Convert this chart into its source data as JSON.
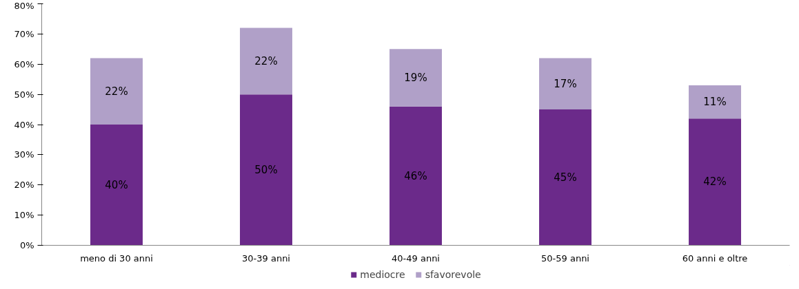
{
  "chart_data": {
    "type": "bar",
    "stacked": true,
    "categories": [
      "meno di 30 anni",
      "30-39 anni",
      "40-49 anni",
      "50-59 anni",
      "60 anni e oltre"
    ],
    "series": [
      {
        "name": "mediocre",
        "color": "#6b2a8a",
        "values": [
          40,
          50,
          46,
          45,
          42
        ],
        "value_labels": [
          "40%",
          "50%",
          "46%",
          "45%",
          "42%"
        ]
      },
      {
        "name": "sfavorevole",
        "color": "#b0a0c8",
        "values": [
          22,
          22,
          19,
          17,
          11
        ],
        "value_labels": [
          "22%",
          "22%",
          "19%",
          "17%",
          "11%"
        ]
      }
    ],
    "ylim": [
      0,
      80
    ],
    "yticks": [
      {
        "value": 0,
        "label": "0%"
      },
      {
        "value": 10,
        "label": "10%"
      },
      {
        "value": 20,
        "label": "20%"
      },
      {
        "value": 30,
        "label": "30%"
      },
      {
        "value": 40,
        "label": "40%"
      },
      {
        "value": 50,
        "label": "50%"
      },
      {
        "value": 60,
        "label": "60%"
      },
      {
        "value": 70,
        "label": "70%"
      },
      {
        "value": 80,
        "label": "80%"
      }
    ],
    "grid": false,
    "legend": "bottom"
  }
}
